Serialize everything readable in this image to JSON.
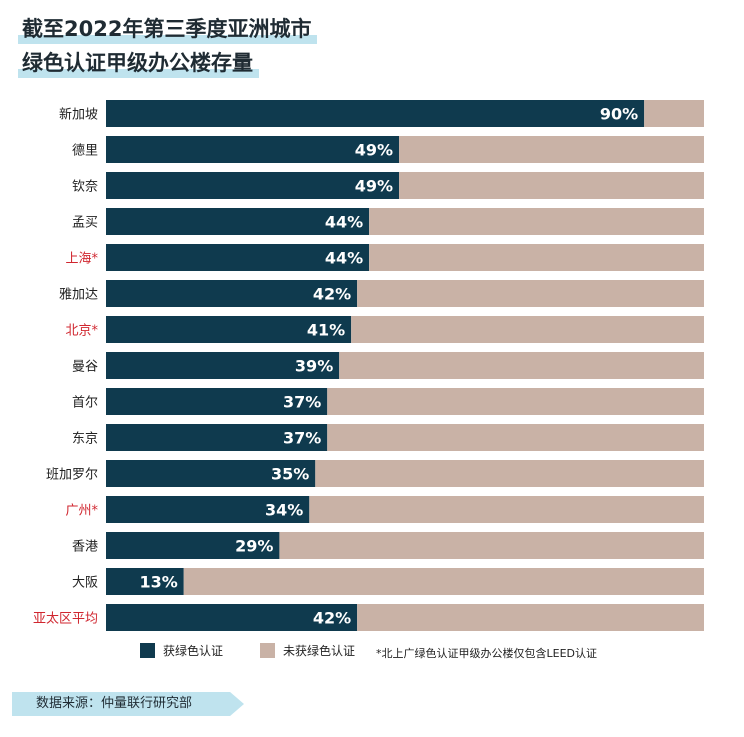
{
  "title": {
    "line1": "截至2022年第三季度亚洲城市",
    "line2": "绿色认证甲级办公楼存量"
  },
  "colors": {
    "certified": "#0f3a4e",
    "uncertified": "#c9b2a6",
    "highlight_label": "#d0262f",
    "normal_label": "#222222",
    "title_underline": "#bfe3ee"
  },
  "legend": {
    "certified": "获绿色认证",
    "uncertified": "未获绿色认证",
    "footnote": "*北上广绿色认证甲级办公楼仅包含LEED认证"
  },
  "source": "数据来源：仲量联行研究部",
  "chart_data": {
    "type": "bar",
    "orientation": "horizontal",
    "stacked": true,
    "xlim": [
      0,
      100
    ],
    "categories": [
      "新加坡",
      "德里",
      "钦奈",
      "孟买",
      "上海*",
      "雅加达",
      "北京*",
      "曼谷",
      "首尔",
      "东京",
      "班加罗尔",
      "广州*",
      "香港",
      "大阪",
      "亚太区平均"
    ],
    "highlighted": [
      "上海*",
      "北京*",
      "广州*",
      "亚太区平均"
    ],
    "series": [
      {
        "name": "获绿色认证",
        "values": [
          90,
          49,
          49,
          44,
          44,
          42,
          41,
          39,
          37,
          37,
          35,
          34,
          29,
          13,
          42
        ]
      },
      {
        "name": "未获绿色认证",
        "values": [
          10,
          51,
          51,
          56,
          56,
          58,
          59,
          61,
          63,
          63,
          65,
          66,
          71,
          87,
          58
        ]
      }
    ],
    "data_labels": [
      "90%",
      "49%",
      "49%",
      "44%",
      "44%",
      "42%",
      "41%",
      "39%",
      "37%",
      "37%",
      "35%",
      "34%",
      "29%",
      "13%",
      "42%"
    ]
  }
}
